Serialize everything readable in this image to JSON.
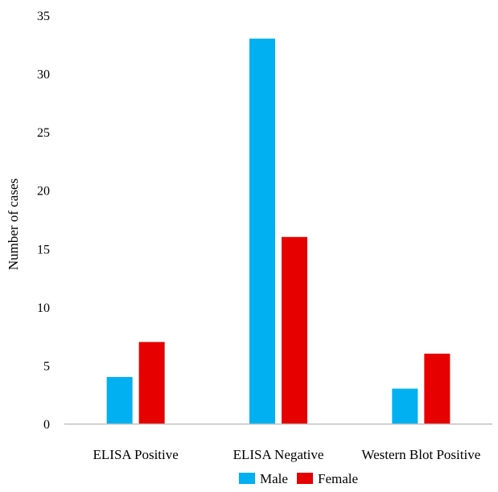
{
  "chart_data": {
    "type": "bar",
    "categories": [
      "ELISA Positive",
      "ELISA Negative",
      "Western Blot Positive"
    ],
    "series": [
      {
        "name": "Male",
        "values": [
          4,
          33,
          3
        ],
        "color": "#00B0F0"
      },
      {
        "name": "Female",
        "values": [
          7,
          16,
          6
        ],
        "color": "#E60000"
      }
    ],
    "ylabel": "Number of cases",
    "xlabel": "",
    "ylim": [
      0,
      35
    ],
    "yticks": [
      0,
      5,
      10,
      15,
      20,
      25,
      30,
      35
    ],
    "grid": false,
    "legend": "bottom"
  }
}
